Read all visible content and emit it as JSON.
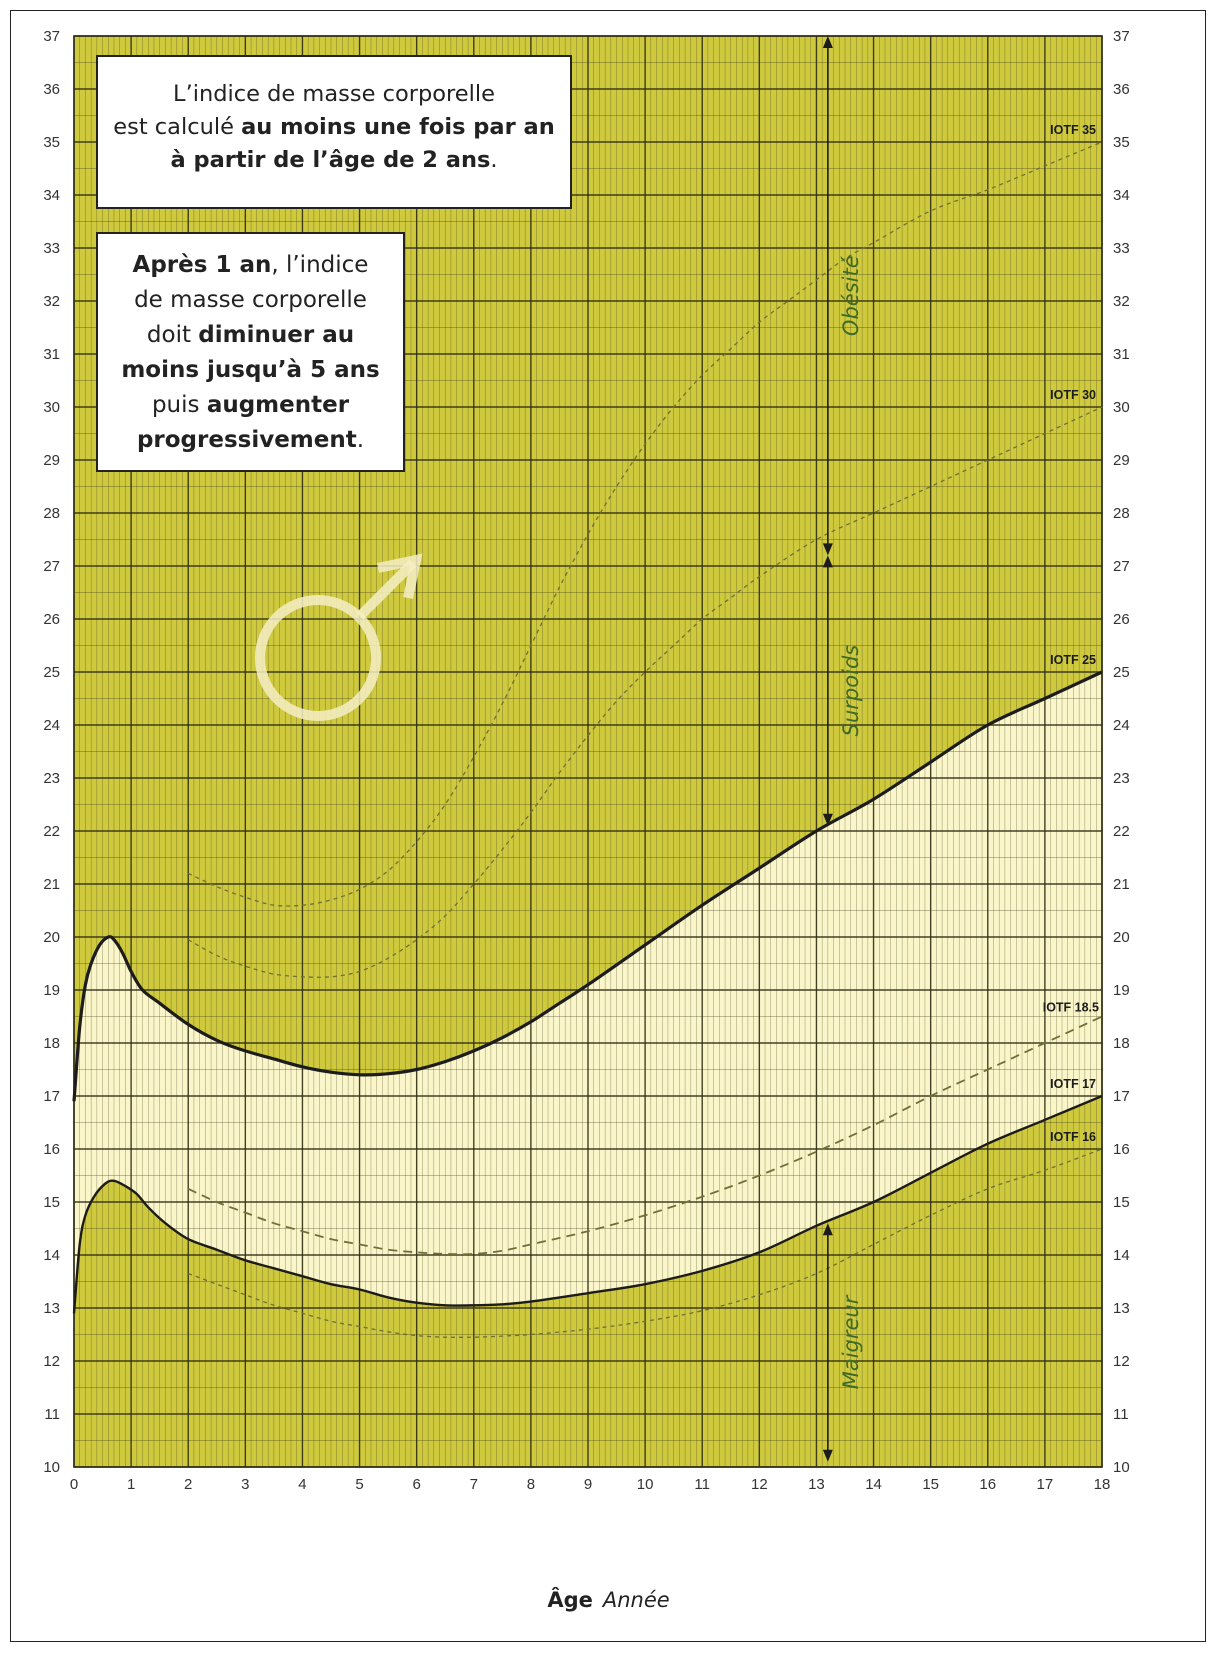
{
  "notes": {
    "box1": [
      [
        {
          "t": "L’indice de masse corporelle",
          "b": false
        }
      ],
      [
        {
          "t": "est calculé ",
          "b": false
        },
        {
          "t": "au moins une fois par an",
          "b": true
        }
      ],
      [
        {
          "t": "à partir de l’âge de 2 ans",
          "b": true
        },
        {
          "t": ".",
          "b": false
        }
      ]
    ],
    "box2": [
      [
        {
          "t": "Après 1 an",
          "b": true
        },
        {
          "t": ", l’indice",
          "b": false
        }
      ],
      [
        {
          "t": "de masse corporelle",
          "b": false
        }
      ],
      [
        {
          "t": "doit ",
          "b": false
        },
        {
          "t": "diminuer au",
          "b": true
        }
      ],
      [
        {
          "t": "moins jusqu’à 5 ans",
          "b": true
        }
      ],
      [
        {
          "t": "puis ",
          "b": false
        },
        {
          "t": "augmenter",
          "b": true
        }
      ],
      [
        {
          "t": "progressivement",
          "b": true
        },
        {
          "t": ".",
          "b": false
        }
      ]
    ]
  },
  "axis": {
    "word": "Âge",
    "unit": "Année"
  },
  "colors": {
    "background": "#cfc93e",
    "band": "#fbf6c9",
    "grid": "#2e2e14",
    "curve": "#1c1c1c",
    "dashed": "#6f7038",
    "label_green": "#3f6b26",
    "symbol": "#f4eec6"
  },
  "symbol": "male-symbol",
  "chart_data": {
    "type": "line",
    "xlim": [
      0,
      18
    ],
    "ylim": [
      10,
      37
    ],
    "x_ticks": [
      "0",
      "1",
      "2",
      "3",
      "4",
      "5",
      "6",
      "7",
      "8",
      "9",
      "10",
      "11",
      "12",
      "13",
      "14",
      "15",
      "16",
      "17",
      "18"
    ],
    "y_ticks": [
      "10",
      "11",
      "12",
      "13",
      "14",
      "15",
      "16",
      "17",
      "18",
      "19",
      "20",
      "21",
      "22",
      "23",
      "24",
      "25",
      "26",
      "27",
      "28",
      "29",
      "30",
      "31",
      "32",
      "33",
      "34",
      "35",
      "36",
      "37"
    ],
    "grid": true,
    "percentile_curves": [
      {
        "name": "upper",
        "x": [
          0,
          0.1,
          0.2,
          0.3,
          0.45,
          0.6,
          0.7,
          0.85,
          1,
          1.2,
          1.5,
          2,
          2.5,
          3,
          3.5,
          4,
          4.5,
          5,
          5.5,
          6,
          6.5,
          7,
          7.5,
          8,
          8.5,
          9,
          10,
          11,
          12,
          13,
          14,
          15,
          16,
          17,
          18
        ],
        "y": [
          16.9,
          18.3,
          19.1,
          19.5,
          19.85,
          20.0,
          19.95,
          19.7,
          19.35,
          19.0,
          18.75,
          18.35,
          18.05,
          17.85,
          17.7,
          17.55,
          17.45,
          17.4,
          17.42,
          17.5,
          17.65,
          17.85,
          18.1,
          18.4,
          18.75,
          19.1,
          19.85,
          20.6,
          21.3,
          22.0,
          22.6,
          23.3,
          24.0,
          24.5,
          25.0
        ]
      },
      {
        "name": "lower",
        "x": [
          0,
          0.1,
          0.2,
          0.35,
          0.55,
          0.7,
          0.9,
          1.1,
          1.3,
          1.6,
          2,
          2.5,
          3,
          3.5,
          4,
          4.5,
          5,
          5.5,
          6,
          6.5,
          7,
          7.5,
          8,
          9,
          10,
          11,
          12,
          13,
          14,
          15,
          16,
          17,
          18
        ],
        "y": [
          12.9,
          14.2,
          14.75,
          15.1,
          15.35,
          15.4,
          15.3,
          15.15,
          14.9,
          14.6,
          14.3,
          14.1,
          13.9,
          13.75,
          13.6,
          13.45,
          13.35,
          13.2,
          13.1,
          13.05,
          13.05,
          13.07,
          13.12,
          13.28,
          13.45,
          13.7,
          14.05,
          14.55,
          15.0,
          15.55,
          16.1,
          16.55,
          17.0
        ]
      }
    ],
    "iotf_dashed": [
      {
        "label": "IOTF 35",
        "x": [
          2,
          2.5,
          3,
          3.5,
          4,
          4.5,
          5,
          5.5,
          6,
          6.5,
          7,
          7.5,
          8,
          8.5,
          9,
          9.5,
          10,
          10.5,
          11,
          11.5,
          12,
          12.5,
          13,
          13.5,
          14,
          15,
          16,
          17,
          18
        ],
        "y": [
          21.2,
          20.95,
          20.75,
          20.6,
          20.6,
          20.7,
          20.9,
          21.25,
          21.8,
          22.5,
          23.4,
          24.4,
          25.5,
          26.6,
          27.6,
          28.5,
          29.3,
          30.0,
          30.6,
          31.1,
          31.6,
          32.0,
          32.4,
          32.8,
          33.1,
          33.7,
          34.1,
          34.55,
          35.0
        ]
      },
      {
        "label": "IOTF 30",
        "x": [
          2,
          2.5,
          3,
          3.5,
          4,
          4.5,
          5,
          5.5,
          6,
          6.5,
          7,
          7.5,
          8,
          8.5,
          9,
          9.5,
          10,
          10.5,
          11,
          11.5,
          12,
          13,
          14,
          15,
          16,
          17,
          18
        ],
        "y": [
          19.95,
          19.65,
          19.45,
          19.3,
          19.25,
          19.25,
          19.35,
          19.6,
          19.95,
          20.4,
          21.0,
          21.65,
          22.35,
          23.1,
          23.8,
          24.45,
          25.0,
          25.5,
          26.0,
          26.4,
          26.8,
          27.5,
          28.0,
          28.5,
          29.0,
          29.5,
          30.0
        ]
      },
      {
        "label": "IOTF 18.5",
        "x": [
          2,
          2.5,
          3,
          3.5,
          4,
          4.5,
          5,
          5.5,
          6,
          6.5,
          7,
          7.5,
          8,
          9,
          10,
          11,
          12,
          13,
          14,
          15,
          16,
          17,
          18
        ],
        "y": [
          15.25,
          15.0,
          14.8,
          14.6,
          14.45,
          14.3,
          14.2,
          14.1,
          14.05,
          14.02,
          14.02,
          14.08,
          14.2,
          14.45,
          14.75,
          15.1,
          15.5,
          15.95,
          16.45,
          17.0,
          17.5,
          18.0,
          18.5
        ]
      },
      {
        "label": "IOTF 16",
        "x": [
          2,
          2.5,
          3,
          3.5,
          4,
          4.5,
          5,
          5.5,
          6,
          6.5,
          7,
          7.5,
          8,
          9,
          10,
          11,
          12,
          13,
          14,
          15,
          16,
          17,
          18
        ],
        "y": [
          13.65,
          13.45,
          13.25,
          13.05,
          12.9,
          12.75,
          12.65,
          12.55,
          12.48,
          12.45,
          12.45,
          12.47,
          12.5,
          12.6,
          12.75,
          12.95,
          13.25,
          13.65,
          14.2,
          14.75,
          15.25,
          15.6,
          16.0
        ]
      }
    ],
    "iotf_17_label": "IOTF 17",
    "iotf_25_label": "IOTF 25",
    "annotations": [
      {
        "text": "Obésité",
        "x": 13.2,
        "y_from": 27.2,
        "y_to": 37
      },
      {
        "text": "Surpoids",
        "x": 13.2,
        "y_from": 22.1,
        "y_to": 27.2
      },
      {
        "text": "Maigreur",
        "x": 13.2,
        "y_from": 10.1,
        "y_to": 14.6
      }
    ]
  }
}
